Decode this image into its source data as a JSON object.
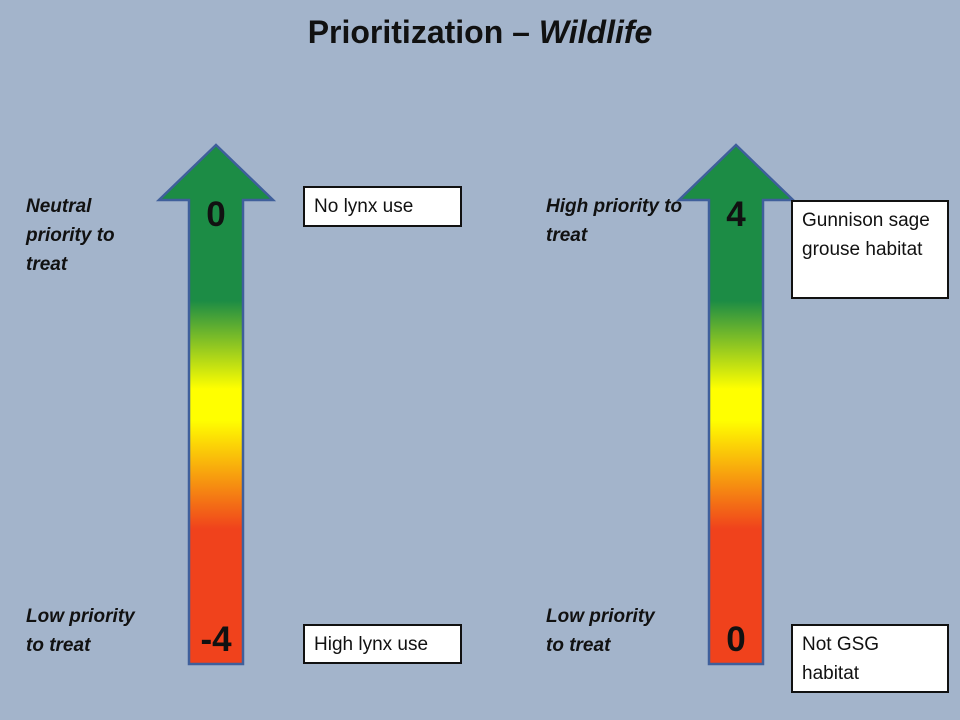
{
  "title": {
    "main": "Prioritization –",
    "italic": "Wildlife"
  },
  "colors": {
    "background": "#a3b4cb",
    "arrow_top": "#1c8c45",
    "arrow_mid": "#ffff00",
    "arrow_bottom": "#f0421c",
    "arrow_outline": "#3f5f9b"
  },
  "left_scale": {
    "top_label": "Neutral priority to treat",
    "bottom_label": "Low priority to treat",
    "top_value": "0",
    "bottom_value": "-4",
    "top_box": "No lynx use",
    "bottom_box": "High lynx use"
  },
  "right_scale": {
    "top_label": "High priority to treat",
    "bottom_label": "Low priority to treat",
    "top_value": "4",
    "bottom_value": "0",
    "top_box": "Gunnison sage grouse habitat",
    "bottom_box": "Not GSG habitat"
  }
}
